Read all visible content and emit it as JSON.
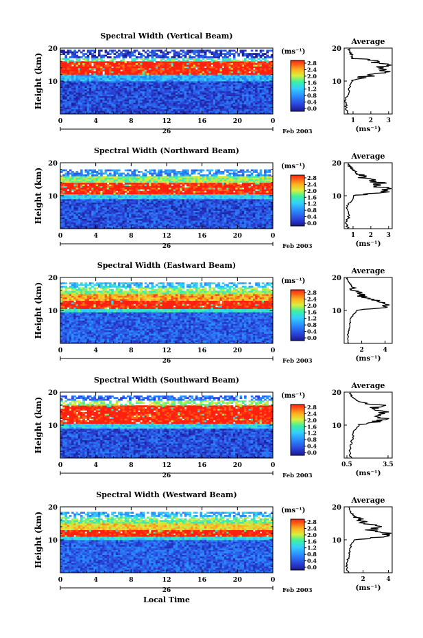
{
  "colors": {
    "low": "#1e2fbf",
    "mid": "#3fa8ff",
    "high": "#ff2a1a",
    "background": "#ffffff"
  },
  "chart_data": [
    {
      "type": "heatmap",
      "title": "Spectral Width (Vertical Beam)",
      "ylabel": "Height (km)",
      "xticks": [
        "0",
        "4",
        "8",
        "12",
        "16",
        "20",
        "0"
      ],
      "yticks": [
        "20",
        "10"
      ],
      "xlim": [
        0,
        24
      ],
      "ylim": [
        0,
        20
      ],
      "date_tick": "26",
      "month_label": "Feb 2003",
      "colorbar": {
        "unit": "(ms⁻¹)",
        "ticks": [
          "2.8",
          "2.4",
          "2.0",
          "1.6",
          "1.2",
          "0.8",
          "0.4",
          "0.0"
        ]
      },
      "bands": [
        {
          "from": 0,
          "to": 10,
          "value": 0.4
        },
        {
          "from": 10,
          "to": 12,
          "value": 1.0
        },
        {
          "from": 12,
          "to": 16,
          "value": 2.9
        },
        {
          "from": 16,
          "to": 17,
          "value": 1.6
        },
        {
          "from": 17,
          "to": 19.5,
          "value": 0.3
        }
      ],
      "average": {
        "title": "Average",
        "xlabel": "(ms⁻¹)",
        "xticks": [
          "1",
          "2",
          "3"
        ],
        "yticks": [
          "20",
          "10"
        ],
        "xlim": [
          0.5,
          3.2
        ],
        "profile": [
          [
            0,
            0.7
          ],
          [
            2,
            0.6
          ],
          [
            4,
            0.6
          ],
          [
            6,
            0.7
          ],
          [
            8,
            0.8
          ],
          [
            10,
            1.0
          ],
          [
            11,
            1.5
          ],
          [
            12,
            2.3
          ],
          [
            13,
            2.8
          ],
          [
            14,
            2.6
          ],
          [
            15,
            2.9
          ],
          [
            16,
            2.2
          ],
          [
            17,
            1.0
          ],
          [
            18,
            0.9
          ],
          [
            19,
            0.8
          ],
          [
            20,
            0.8
          ]
        ]
      }
    },
    {
      "type": "heatmap",
      "title": "Spectral Width (Northward Beam)",
      "ylabel": "Height (km)",
      "xticks": [
        "0",
        "4",
        "8",
        "12",
        "16",
        "20",
        "0"
      ],
      "yticks": [
        "20",
        "10"
      ],
      "xlim": [
        0,
        24
      ],
      "ylim": [
        0,
        20
      ],
      "date_tick": "26",
      "month_label": "Feb 2003",
      "colorbar": {
        "unit": "(ms⁻¹)",
        "ticks": [
          "2.8",
          "2.4",
          "2.0",
          "1.6",
          "1.2",
          "0.8",
          "0.4",
          "0.0"
        ]
      },
      "bands": [
        {
          "from": 0,
          "to": 9,
          "value": 0.4
        },
        {
          "from": 9,
          "to": 10.5,
          "value": 1.2
        },
        {
          "from": 10.5,
          "to": 14,
          "value": 2.9
        },
        {
          "from": 14,
          "to": 16,
          "value": 1.8
        },
        {
          "from": 16,
          "to": 18,
          "value": 0.8
        }
      ],
      "average": {
        "title": "Average",
        "xlabel": "(ms⁻¹)",
        "xticks": [
          "1",
          "2",
          "3"
        ],
        "yticks": [
          "20",
          "10"
        ],
        "xlim": [
          0.5,
          3.2
        ],
        "profile": [
          [
            0,
            0.7
          ],
          [
            2,
            0.6
          ],
          [
            4,
            0.8
          ],
          [
            6,
            0.6
          ],
          [
            8,
            0.8
          ],
          [
            10,
            1.1
          ],
          [
            11,
            2.8
          ],
          [
            12,
            3.0
          ],
          [
            13,
            2.2
          ],
          [
            14,
            2.5
          ],
          [
            15,
            1.8
          ],
          [
            16,
            1.5
          ],
          [
            17,
            1.2
          ],
          [
            18,
            1.0
          ],
          [
            19,
            0.8
          ],
          [
            20,
            0.7
          ]
        ]
      }
    },
    {
      "type": "heatmap",
      "title": "Spectral Width (Eastward Beam)",
      "ylabel": "Height (km)",
      "xticks": [
        "0",
        "4",
        "8",
        "12",
        "16",
        "20",
        "0"
      ],
      "yticks": [
        "20",
        "10"
      ],
      "xlim": [
        0,
        24
      ],
      "ylim": [
        0,
        20
      ],
      "date_tick": "26",
      "month_label": "Feb 2003",
      "colorbar": {
        "unit": "(ms⁻¹)",
        "ticks": [
          "2.8",
          "2.4",
          "2.0",
          "1.6",
          "1.2",
          "0.8",
          "0.4",
          "0.0"
        ]
      },
      "bands": [
        {
          "from": 0,
          "to": 9.5,
          "value": 0.5
        },
        {
          "from": 9.5,
          "to": 10.5,
          "value": 1.4
        },
        {
          "from": 10.5,
          "to": 13,
          "value": 2.9
        },
        {
          "from": 13,
          "to": 15,
          "value": 2.4
        },
        {
          "from": 15,
          "to": 17,
          "value": 1.8
        },
        {
          "from": 17,
          "to": 18.5,
          "value": 1.1
        }
      ],
      "average": {
        "title": "Average",
        "xlabel": "(ms⁻¹)",
        "xticks": [
          "2",
          "4"
        ],
        "yticks": [
          "20",
          "10"
        ],
        "xlim": [
          0.5,
          4.6
        ],
        "profile": [
          [
            0,
            0.9
          ],
          [
            2,
            0.8
          ],
          [
            4,
            0.9
          ],
          [
            6,
            1.0
          ],
          [
            8,
            1.1
          ],
          [
            10,
            1.6
          ],
          [
            11,
            4.0
          ],
          [
            12,
            4.3
          ],
          [
            13,
            3.2
          ],
          [
            14,
            2.2
          ],
          [
            15,
            1.8
          ],
          [
            16,
            1.5
          ],
          [
            17,
            1.2
          ],
          [
            18,
            1.0
          ],
          [
            19,
            0.8
          ],
          [
            20,
            0.7
          ]
        ]
      }
    },
    {
      "type": "heatmap",
      "title": "Spectral Width (Southward Beam)",
      "ylabel": "Height (km)",
      "xticks": [
        "0",
        "4",
        "8",
        "12",
        "16",
        "20",
        "0"
      ],
      "yticks": [
        "20",
        "10"
      ],
      "xlim": [
        0,
        24
      ],
      "ylim": [
        0,
        20
      ],
      "date_tick": "26",
      "month_label": "Feb 2003",
      "colorbar": {
        "unit": "(ms⁻¹)",
        "ticks": [
          "2.8",
          "2.4",
          "2.0",
          "1.6",
          "1.2",
          "0.8",
          "0.4",
          "0.0"
        ]
      },
      "bands": [
        {
          "from": 0,
          "to": 9,
          "value": 0.4
        },
        {
          "from": 9,
          "to": 10.5,
          "value": 1.2
        },
        {
          "from": 10.5,
          "to": 16,
          "value": 2.9
        },
        {
          "from": 16,
          "to": 17.5,
          "value": 1.8
        },
        {
          "from": 17.5,
          "to": 19,
          "value": 0.6
        }
      ],
      "average": {
        "title": "Average",
        "xlabel": "(ms⁻¹)",
        "xticks": [
          "0.5",
          "3.5"
        ],
        "yticks": [
          "20",
          "10"
        ],
        "xlim": [
          0.3,
          3.8
        ],
        "profile": [
          [
            0,
            0.8
          ],
          [
            2,
            0.7
          ],
          [
            4,
            0.8
          ],
          [
            6,
            0.9
          ],
          [
            8,
            1.0
          ],
          [
            10,
            1.4
          ],
          [
            11,
            2.6
          ],
          [
            12,
            3.2
          ],
          [
            13,
            2.8
          ],
          [
            14,
            3.3
          ],
          [
            15,
            2.4
          ],
          [
            16,
            3.0
          ],
          [
            17,
            1.5
          ],
          [
            18,
            1.0
          ],
          [
            19,
            0.8
          ],
          [
            20,
            0.7
          ]
        ]
      }
    },
    {
      "type": "heatmap",
      "title": "Spectral Width (Westward Beam)",
      "ylabel": "Height (km)",
      "xlabel": "Local Time",
      "xticks": [
        "0",
        "4",
        "8",
        "12",
        "16",
        "20",
        "0"
      ],
      "yticks": [
        "20",
        "10"
      ],
      "xlim": [
        0,
        24
      ],
      "ylim": [
        0,
        20
      ],
      "date_tick": "26",
      "month_label": "Feb 2003",
      "colorbar": {
        "unit": "(ms⁻¹)",
        "ticks": [
          "2.8",
          "2.4",
          "2.0",
          "1.6",
          "1.2",
          "0.8",
          "0.4",
          "0.0"
        ]
      },
      "bands": [
        {
          "from": 0,
          "to": 10,
          "value": 0.5
        },
        {
          "from": 10,
          "to": 11,
          "value": 1.3
        },
        {
          "from": 11,
          "to": 13,
          "value": 2.9
        },
        {
          "from": 13,
          "to": 15,
          "value": 2.2
        },
        {
          "from": 15,
          "to": 17,
          "value": 1.7
        },
        {
          "from": 17,
          "to": 18.5,
          "value": 1.0
        }
      ],
      "average": {
        "title": "Average",
        "xlabel": "(ms⁻¹)",
        "xticks": [
          "2",
          "4"
        ],
        "yticks": [
          "20",
          "10"
        ],
        "xlim": [
          0.5,
          4.3
        ],
        "profile": [
          [
            0,
            0.8
          ],
          [
            2,
            0.7
          ],
          [
            4,
            0.8
          ],
          [
            6,
            0.9
          ],
          [
            8,
            1.0
          ],
          [
            10,
            1.3
          ],
          [
            11,
            3.8
          ],
          [
            12,
            4.0
          ],
          [
            13,
            2.5
          ],
          [
            14,
            3.4
          ],
          [
            15,
            2.0
          ],
          [
            16,
            1.8
          ],
          [
            17,
            1.4
          ],
          [
            18,
            1.1
          ],
          [
            19,
            0.9
          ],
          [
            20,
            0.8
          ]
        ]
      }
    }
  ]
}
